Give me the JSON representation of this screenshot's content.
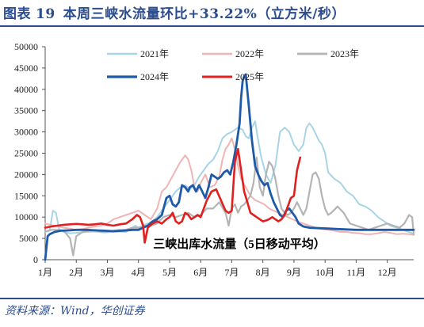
{
  "header": {
    "figure_label": "图表",
    "figure_number": "19",
    "title": "本周三峡水流量环比+33.22%（立方米/秒）"
  },
  "footer": {
    "source": "资料来源：Wind，华创证券"
  },
  "colors": {
    "title_blue": "#2b4c8f",
    "y2021": "#a8d4e6",
    "y2022": "#efb4b4",
    "y2023": "#b4b4b4",
    "y2024": "#1f5aa8",
    "y2025": "#e0201e"
  },
  "chart_data": {
    "type": "line",
    "title": "",
    "xlabel": "",
    "ylabel": "",
    "annotation": "三峡出库水流量（5日移动平均）",
    "x_unit": "month",
    "x_ticks": [
      "1月",
      "2月",
      "3月",
      "4月",
      "5月",
      "6月",
      "7月",
      "8月",
      "9月",
      "10月",
      "11月",
      "12月"
    ],
    "xlim": [
      1,
      12.85
    ],
    "ylim": [
      0,
      50000
    ],
    "y_ticks": [
      "0",
      "5000",
      "10000",
      "15000",
      "20000",
      "25000",
      "30000",
      "35000",
      "40000",
      "45000",
      "50000"
    ],
    "grid": false,
    "legend_placement": "top",
    "series": [
      {
        "name": "2021年",
        "color_key": "y2021",
        "x": [
          1.0,
          1.15,
          1.25,
          1.35,
          1.45,
          1.6,
          1.8,
          2.0,
          2.3,
          2.6,
          2.9,
          3.1,
          3.4,
          3.6,
          3.8,
          3.9,
          4.0,
          4.15,
          4.3,
          4.45,
          4.6,
          4.75,
          4.9,
          5.05,
          5.2,
          5.35,
          5.5,
          5.65,
          5.8,
          5.95,
          6.1,
          6.25,
          6.4,
          6.55,
          6.7,
          6.85,
          7.0,
          7.2,
          7.35,
          7.45,
          7.55,
          7.65,
          7.75,
          7.85,
          7.95,
          8.1,
          8.25,
          8.4,
          8.55,
          8.7,
          8.85,
          9.0,
          9.15,
          9.3,
          9.4,
          9.5,
          9.6,
          9.7,
          9.8,
          9.9,
          10.0,
          10.1,
          10.3,
          10.5,
          10.7,
          10.9,
          11.1,
          11.3,
          11.5,
          11.7,
          11.9,
          12.1,
          12.3,
          12.5,
          12.7,
          12.85
        ],
        "y": [
          6500,
          7000,
          11500,
          11000,
          7000,
          6500,
          6200,
          6300,
          6500,
          6600,
          6400,
          6500,
          6600,
          6500,
          7500,
          8000,
          7500,
          8000,
          8500,
          9000,
          10000,
          11500,
          13000,
          14500,
          16000,
          17000,
          17500,
          16500,
          17500,
          19500,
          21000,
          22500,
          23500,
          25500,
          28500,
          29500,
          30000,
          31000,
          30500,
          29000,
          28500,
          31000,
          32500,
          28000,
          24000,
          20000,
          18000,
          22000,
          30000,
          31000,
          30000,
          27000,
          25500,
          27000,
          31000,
          32000,
          31000,
          29500,
          28000,
          27000,
          25000,
          20500,
          19000,
          18000,
          16000,
          15000,
          13000,
          12500,
          11500,
          10000,
          9000,
          8000,
          7500,
          7000,
          6500,
          6000
        ]
      },
      {
        "name": "2022年",
        "color_key": "y2022",
        "x": [
          1.0,
          1.15,
          1.3,
          1.45,
          1.6,
          1.8,
          2.0,
          2.2,
          2.4,
          2.6,
          2.8,
          3.0,
          3.2,
          3.4,
          3.6,
          3.8,
          4.0,
          4.2,
          4.4,
          4.6,
          4.75,
          4.9,
          5.05,
          5.2,
          5.35,
          5.5,
          5.6,
          5.7,
          5.8,
          5.9,
          6.0,
          6.15,
          6.3,
          6.45,
          6.6,
          6.7,
          6.8,
          6.9,
          7.0,
          7.1,
          7.2,
          7.3,
          7.45,
          7.6,
          7.75,
          7.9,
          8.05,
          8.2,
          8.35,
          8.5,
          8.65,
          8.8,
          8.95,
          9.1,
          9.3,
          9.5,
          9.7,
          9.9,
          10.1,
          10.3,
          10.5,
          10.7,
          10.9,
          11.1,
          11.3,
          11.5,
          11.7,
          11.9,
          12.1,
          12.3,
          12.5,
          12.7,
          12.85
        ],
        "y": [
          8500,
          8200,
          8000,
          7800,
          7500,
          7300,
          7000,
          7200,
          7500,
          7800,
          8000,
          8500,
          9500,
          10000,
          10500,
          11000,
          11500,
          10500,
          9500,
          12000,
          16000,
          17000,
          19000,
          21000,
          23000,
          24500,
          23500,
          21000,
          17000,
          16000,
          18000,
          20000,
          17000,
          17500,
          19500,
          23500,
          26000,
          27000,
          28500,
          26000,
          22000,
          19000,
          17000,
          15000,
          14000,
          13500,
          13000,
          12000,
          11500,
          11000,
          10500,
          10000,
          9500,
          9000,
          8500,
          8000,
          7500,
          7200,
          7000,
          6800,
          6500,
          6500,
          6300,
          6200,
          6000,
          6000,
          6200,
          6500,
          6300,
          6000,
          6100,
          6000,
          5800
        ]
      },
      {
        "name": "2023年",
        "color_key": "y2023",
        "x": [
          1.0,
          1.2,
          1.4,
          1.6,
          1.8,
          1.9,
          2.0,
          2.2,
          2.4,
          2.6,
          2.8,
          3.0,
          3.2,
          3.4,
          3.6,
          3.8,
          4.0,
          4.2,
          4.4,
          4.6,
          4.8,
          5.0,
          5.2,
          5.4,
          5.6,
          5.8,
          6.0,
          6.2,
          6.4,
          6.6,
          6.8,
          6.9,
          7.0,
          7.1,
          7.2,
          7.3,
          7.4,
          7.5,
          7.6,
          7.7,
          7.8,
          7.9,
          8.0,
          8.1,
          8.2,
          8.3,
          8.4,
          8.5,
          8.6,
          8.7,
          8.8,
          8.9,
          9.0,
          9.1,
          9.2,
          9.3,
          9.4,
          9.5,
          9.6,
          9.7,
          9.8,
          9.9,
          10.0,
          10.1,
          10.2,
          10.4,
          10.6,
          10.8,
          11.0,
          11.2,
          11.4,
          11.6,
          11.8,
          12.0,
          12.2,
          12.4,
          12.55,
          12.7,
          12.8,
          12.85
        ],
        "y": [
          6500,
          7000,
          7000,
          6800,
          5000,
          1000,
          5500,
          6500,
          6800,
          6900,
          6500,
          6500,
          6800,
          7000,
          7000,
          7500,
          7500,
          8000,
          8000,
          8500,
          10000,
          10500,
          10000,
          10500,
          11000,
          10000,
          10500,
          12000,
          12000,
          13500,
          11000,
          8000,
          12000,
          13000,
          11000,
          12500,
          13000,
          14000,
          15000,
          18000,
          24000,
          17000,
          15000,
          20000,
          23000,
          22000,
          19000,
          15000,
          12000,
          11000,
          10500,
          11000,
          12000,
          13500,
          12000,
          10500,
          12000,
          16000,
          20000,
          20500,
          19000,
          15000,
          12000,
          10500,
          11000,
          12500,
          11000,
          8500,
          8000,
          7500,
          7000,
          7500,
          8000,
          8500,
          8000,
          7500,
          8500,
          10500,
          10000,
          6000
        ]
      },
      {
        "name": "2024年",
        "color_key": "y2024",
        "x": [
          1.0,
          1.08,
          1.15,
          1.3,
          1.5,
          1.8,
          2.0,
          2.3,
          2.6,
          2.9,
          3.2,
          3.5,
          3.8,
          4.0,
          4.15,
          4.3,
          4.45,
          4.6,
          4.75,
          4.9,
          5.0,
          5.1,
          5.2,
          5.3,
          5.4,
          5.5,
          5.6,
          5.65,
          5.75,
          5.85,
          5.95,
          6.05,
          6.15,
          6.25,
          6.35,
          6.45,
          6.55,
          6.65,
          6.75,
          6.85,
          6.95,
          7.05,
          7.15,
          7.25,
          7.3,
          7.35,
          7.4,
          7.45,
          7.55,
          7.65,
          7.75,
          7.85,
          7.95,
          8.05,
          8.15,
          8.25,
          8.35,
          8.45,
          8.55,
          8.65,
          8.75,
          8.85,
          8.95,
          9.05,
          9.15,
          9.3,
          9.5,
          9.8,
          10.1,
          10.4,
          10.7,
          11.0,
          11.3,
          11.6,
          11.9,
          12.2,
          12.5,
          12.85
        ],
        "y": [
          0,
          5500,
          6000,
          6500,
          6800,
          6900,
          7000,
          7000,
          6900,
          6800,
          6700,
          6800,
          7000,
          7000,
          7500,
          8000,
          9000,
          9500,
          10500,
          14500,
          15000,
          13000,
          12500,
          13500,
          17500,
          17000,
          16000,
          17000,
          17500,
          16000,
          17500,
          16000,
          14500,
          17000,
          20000,
          19500,
          19000,
          19500,
          20500,
          21000,
          20000,
          23000,
          27000,
          32000,
          38000,
          42000,
          43000,
          43500,
          36000,
          28000,
          22000,
          20000,
          18500,
          17500,
          18000,
          15500,
          13500,
          12000,
          10500,
          10000,
          11500,
          12000,
          11000,
          10000,
          8500,
          7800,
          7500,
          7400,
          7300,
          7200,
          7100,
          7000,
          7000,
          7000,
          7000,
          7000,
          7000,
          7000
        ]
      },
      {
        "name": "2025年",
        "color_key": "y2025",
        "x": [
          1.0,
          1.2,
          1.4,
          1.6,
          1.8,
          2.0,
          2.2,
          2.4,
          2.6,
          2.8,
          3.0,
          3.2,
          3.4,
          3.6,
          3.8,
          3.95,
          4.05,
          4.15,
          4.2,
          4.3,
          4.45,
          4.6,
          4.75,
          4.9,
          5.0,
          5.1,
          5.2,
          5.3,
          5.4,
          5.5,
          5.6,
          5.7,
          5.8,
          5.9,
          6.0,
          6.1,
          6.2,
          6.35,
          6.5,
          6.65,
          6.8,
          6.9,
          7.0,
          7.1,
          7.2,
          7.3,
          7.4,
          7.5,
          7.6,
          7.7,
          7.8,
          7.9,
          8.0,
          8.1,
          8.2,
          8.3,
          8.4,
          8.5,
          8.6,
          8.7,
          8.8,
          8.9,
          9.0,
          9.1,
          9.2
        ],
        "y": [
          7500,
          7800,
          8000,
          8200,
          8300,
          8400,
          8300,
          8200,
          8300,
          8500,
          8200,
          8000,
          8300,
          8500,
          9500,
          10500,
          10000,
          8000,
          4000,
          7500,
          8500,
          9000,
          8500,
          9500,
          10000,
          11000,
          9000,
          8500,
          9000,
          11000,
          10500,
          9500,
          10000,
          10500,
          10000,
          12000,
          14000,
          16000,
          16500,
          14000,
          11500,
          11000,
          11500,
          23000,
          26000,
          21000,
          16000,
          13500,
          11000,
          10500,
          10000,
          9500,
          9000,
          9200,
          9500,
          10000,
          9500,
          9000,
          9500,
          10500,
          12500,
          14500,
          15000,
          21000,
          24000
        ]
      }
    ]
  }
}
